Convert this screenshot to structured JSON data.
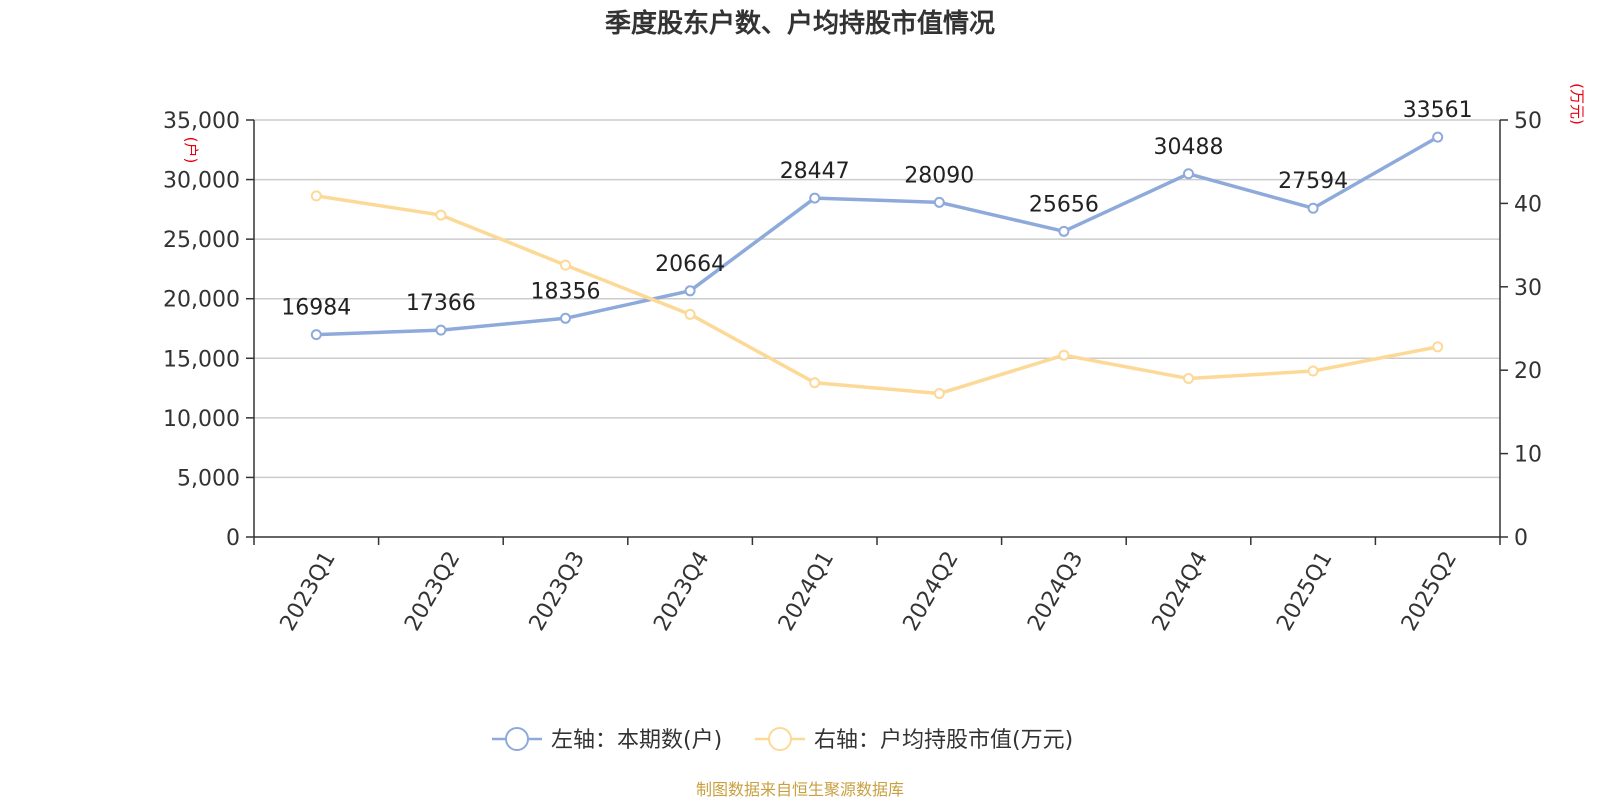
{
  "chart_data": {
    "type": "line",
    "title": "季度股东户数、户均持股市值情况",
    "categories": [
      "2023Q1",
      "2023Q2",
      "2023Q3",
      "2023Q4",
      "2024Q1",
      "2024Q2",
      "2024Q3",
      "2024Q4",
      "2025Q1",
      "2025Q2"
    ],
    "series": [
      {
        "name": "左轴：本期数(户)",
        "axis": "left",
        "color": "#8eaadb",
        "values": [
          16984,
          17366,
          18356,
          20664,
          28447,
          28090,
          25656,
          30488,
          27594,
          33561
        ],
        "labels": [
          "16984",
          "17366",
          "18356",
          "20664",
          "28447",
          "28090",
          "25656",
          "30488",
          "27594",
          "33561"
        ]
      },
      {
        "name": "右轴：户均持股市值(万元)",
        "axis": "right",
        "color": "#fdd998",
        "values": [
          40.9,
          38.6,
          32.6,
          26.7,
          18.5,
          17.2,
          21.8,
          19.0,
          19.9,
          22.8
        ]
      }
    ],
    "y_left": {
      "unit": "(户)",
      "ylim": [
        0,
        35000
      ],
      "ticks": [
        0,
        5000,
        10000,
        15000,
        20000,
        25000,
        30000,
        35000
      ],
      "tick_labels": [
        "0",
        "5,000",
        "10,000",
        "15,000",
        "20,000",
        "25,000",
        "30,000",
        "35,000"
      ]
    },
    "y_right": {
      "unit": "(万元)",
      "ylim": [
        0,
        50
      ],
      "ticks": [
        0,
        10,
        20,
        30,
        40,
        50
      ],
      "tick_labels": [
        "0",
        "10",
        "20",
        "30",
        "40",
        "50"
      ]
    },
    "grid": true,
    "legend_position": "bottom-center",
    "unit_color": "#e60012"
  },
  "footer": {
    "source": "制图数据来自恒生聚源数据库",
    "color": "#c8a040"
  }
}
